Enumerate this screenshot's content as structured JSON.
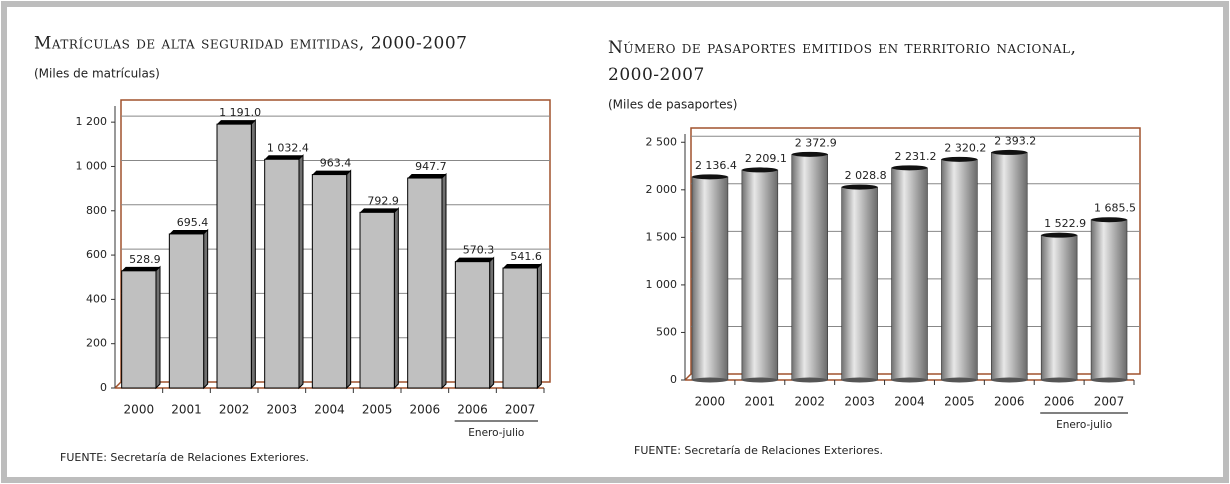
{
  "chart_data": [
    {
      "type": "bar3d",
      "title": "Matrículas de alta seguridad emitidas, 2000-2007",
      "subtitle": "(Miles de matrículas)",
      "categories": [
        "2000",
        "2001",
        "2002",
        "2003",
        "2004",
        "2005",
        "2006",
        "2006",
        "2007"
      ],
      "values": [
        528.9,
        695.4,
        1191.0,
        1032.4,
        963.4,
        792.9,
        947.7,
        570.3,
        541.6
      ],
      "value_labels": [
        "528.9",
        "695.4",
        "1 191.0",
        "1 032.4",
        "963.4",
        "792.9",
        "947.7",
        "570.3",
        "541.6"
      ],
      "color": "#c0c0c0",
      "frame_color": "#a0522d",
      "ylim": [
        0,
        1300
      ],
      "yticks": [
        0,
        200,
        400,
        600,
        800,
        {
          "value": 1000,
          "label": "1 000"
        },
        {
          "value": 1200,
          "label": "1 200"
        }
      ],
      "grid": true,
      "period_label": "Enero-julio",
      "source": "FUENTE: Secretaría de Relaciones Exteriores."
    },
    {
      "type": "cylinder",
      "title": "Número de pasaportes emitidos en territorio nacional, 2000-2007",
      "subtitle": "(Miles de pasaportes)",
      "categories": [
        "2000",
        "2001",
        "2002",
        "2003",
        "2004",
        "2005",
        "2006",
        "2006",
        "2007"
      ],
      "values": [
        2136.4,
        2209.1,
        2372.9,
        2028.8,
        2231.2,
        2320.2,
        2393.2,
        1522.9,
        1685.5
      ],
      "value_labels": [
        "2 136.4",
        "2 209.1",
        "2 372.9",
        "2 028.8",
        "2 231.2",
        "2 320.2",
        "2 393.2",
        "1 522.9",
        "1 685.5"
      ],
      "color": "#b8b8b8",
      "frame_color": "#a0522d",
      "ylim": [
        0,
        2650
      ],
      "yticks": [
        0,
        500,
        {
          "value": 1000,
          "label": "1 000"
        },
        {
          "value": 1500,
          "label": "1 500"
        },
        {
          "value": 2000,
          "label": "2 000"
        },
        {
          "value": 2500,
          "label": "2 500"
        }
      ],
      "grid": true,
      "period_label": "Enero-julio",
      "source": "FUENTE: Secretaría de Relaciones Exteriores."
    }
  ]
}
